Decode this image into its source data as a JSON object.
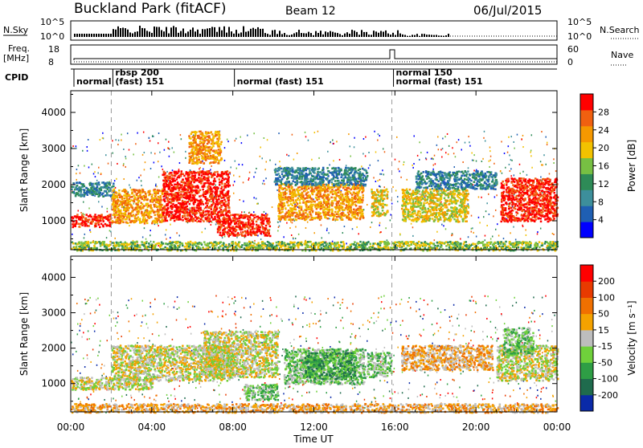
{
  "header": {
    "site": "Buckland Park (fitACF)",
    "beam": "Beam 12",
    "date": "06/Jul/2015"
  },
  "strips": {
    "nsky_label": "N.Sky",
    "nsearch_label": "N.Search",
    "noise_ticks_left": [
      "10^5",
      "10^0"
    ],
    "noise_ticks_right": [
      "10^5",
      "10^0"
    ],
    "freq_label": "Freq.",
    "freq_unit": "[MHz]",
    "freq_ticks": [
      "18",
      "8"
    ],
    "nave_label": "Nave",
    "nave_ticks": [
      "60",
      "0"
    ],
    "cpid_label": "CPID",
    "cpid_segments": [
      {
        "text": "normal",
        "text2": "",
        "start": 0.0
      },
      {
        "text": "rbsp 200",
        "text2": "(fast) 151",
        "start": 2.0
      },
      {
        "text": "normal (fast) 151",
        "text2": "",
        "start": 8.0
      },
      {
        "text": "normal 150",
        "text2": "normal (fast) 151",
        "start": 15.85
      }
    ]
  },
  "chart_data": [
    {
      "type": "heatmap",
      "name": "power",
      "ylabel": "Slant Range [km]",
      "xlabel": "Time UT",
      "xlim": [
        0,
        24
      ],
      "ylim": [
        200,
        4600
      ],
      "xticks": [
        "00:00",
        "04:00",
        "08:00",
        "12:00",
        "16:00",
        "20:00",
        "00:00"
      ],
      "yticks": [
        1000,
        2000,
        3000,
        4000
      ],
      "colorbar_label": "Power [dB]",
      "colorbar_ticks": [
        "28",
        "24",
        "20",
        "16",
        "12",
        "8",
        "4"
      ],
      "colors": [
        "#0000ff",
        "#1f5fb3",
        "#3d8f9b",
        "#2e8b57",
        "#77c043",
        "#f2c200",
        "#f59800",
        "#f06010",
        "#ff0000"
      ],
      "regions": [
        {
          "t": [
            0.0,
            2.0
          ],
          "r": [
            850,
            1200
          ],
          "level": 8
        },
        {
          "t": [
            0.0,
            2.1
          ],
          "r": [
            1700,
            2100
          ],
          "level": 2
        },
        {
          "t": [
            2.0,
            4.5
          ],
          "r": [
            950,
            1900
          ],
          "level": 6
        },
        {
          "t": [
            4.5,
            7.8
          ],
          "r": [
            1000,
            2400
          ],
          "level": 8
        },
        {
          "t": [
            5.8,
            7.4
          ],
          "r": [
            2600,
            3500
          ],
          "level": 6
        },
        {
          "t": [
            7.2,
            9.8
          ],
          "r": [
            600,
            1200
          ],
          "level": 8
        },
        {
          "t": [
            10.2,
            14.4
          ],
          "r": [
            1050,
            2050
          ],
          "level": 6
        },
        {
          "t": [
            10.0,
            14.6
          ],
          "r": [
            2000,
            2500
          ],
          "level": 2
        },
        {
          "t": [
            14.8,
            15.6
          ],
          "r": [
            1150,
            1900
          ],
          "level": 5
        },
        {
          "t": [
            16.3,
            19.6
          ],
          "r": [
            1000,
            1900
          ],
          "level": 5
        },
        {
          "t": [
            17.0,
            21.0
          ],
          "r": [
            1900,
            2400
          ],
          "level": 2
        },
        {
          "t": [
            21.2,
            24.0
          ],
          "r": [
            1000,
            2200
          ],
          "level": 8
        },
        {
          "t": [
            0.0,
            24.0
          ],
          "r": [
            200,
            450
          ],
          "level": 4
        }
      ]
    },
    {
      "type": "heatmap",
      "name": "velocity",
      "ylabel": "Slant Range [km]",
      "xlabel": "Time UT",
      "xlim": [
        0,
        24
      ],
      "ylim": [
        200,
        4600
      ],
      "xticks": [
        "00:00",
        "04:00",
        "08:00",
        "12:00",
        "16:00",
        "20:00",
        "00:00"
      ],
      "yticks": [
        1000,
        2000,
        3000,
        4000
      ],
      "colorbar_label": "Velocity [m s⁻¹]",
      "colorbar_ticks": [
        "200",
        "100",
        "50",
        "15",
        "-15",
        "-50",
        "-100",
        "-200"
      ],
      "colors": [
        "#0a2aa8",
        "#1f6b4d",
        "#2e9e45",
        "#6fd03b",
        "#bdbdbd",
        "#f4a200",
        "#f07000",
        "#e83a00",
        "#ff0000"
      ],
      "regions": [
        {
          "t": [
            0.0,
            4.0
          ],
          "r": [
            850,
            1200
          ],
          "level": 4
        },
        {
          "t": [
            2.0,
            8.0
          ],
          "r": [
            1100,
            2100
          ],
          "level": 4
        },
        {
          "t": [
            6.5,
            10.2
          ],
          "r": [
            1200,
            2500
          ],
          "level": 4
        },
        {
          "t": [
            8.5,
            10.2
          ],
          "r": [
            550,
            1000
          ],
          "level": 3
        },
        {
          "t": [
            10.5,
            14.5
          ],
          "r": [
            1000,
            2000
          ],
          "level": 3
        },
        {
          "t": [
            11.5,
            14.0
          ],
          "r": [
            1150,
            1900
          ],
          "level": 2
        },
        {
          "t": [
            14.6,
            15.8
          ],
          "r": [
            1200,
            1900
          ],
          "level": 3
        },
        {
          "t": [
            16.3,
            20.8
          ],
          "r": [
            1400,
            2100
          ],
          "level": 5
        },
        {
          "t": [
            21.0,
            24.0
          ],
          "r": [
            1100,
            2100
          ],
          "level": 4
        },
        {
          "t": [
            21.3,
            22.8
          ],
          "r": [
            1800,
            2600
          ],
          "level": 3
        },
        {
          "t": [
            0.0,
            24.0
          ],
          "r": [
            200,
            450
          ],
          "level": 5
        }
      ]
    }
  ]
}
